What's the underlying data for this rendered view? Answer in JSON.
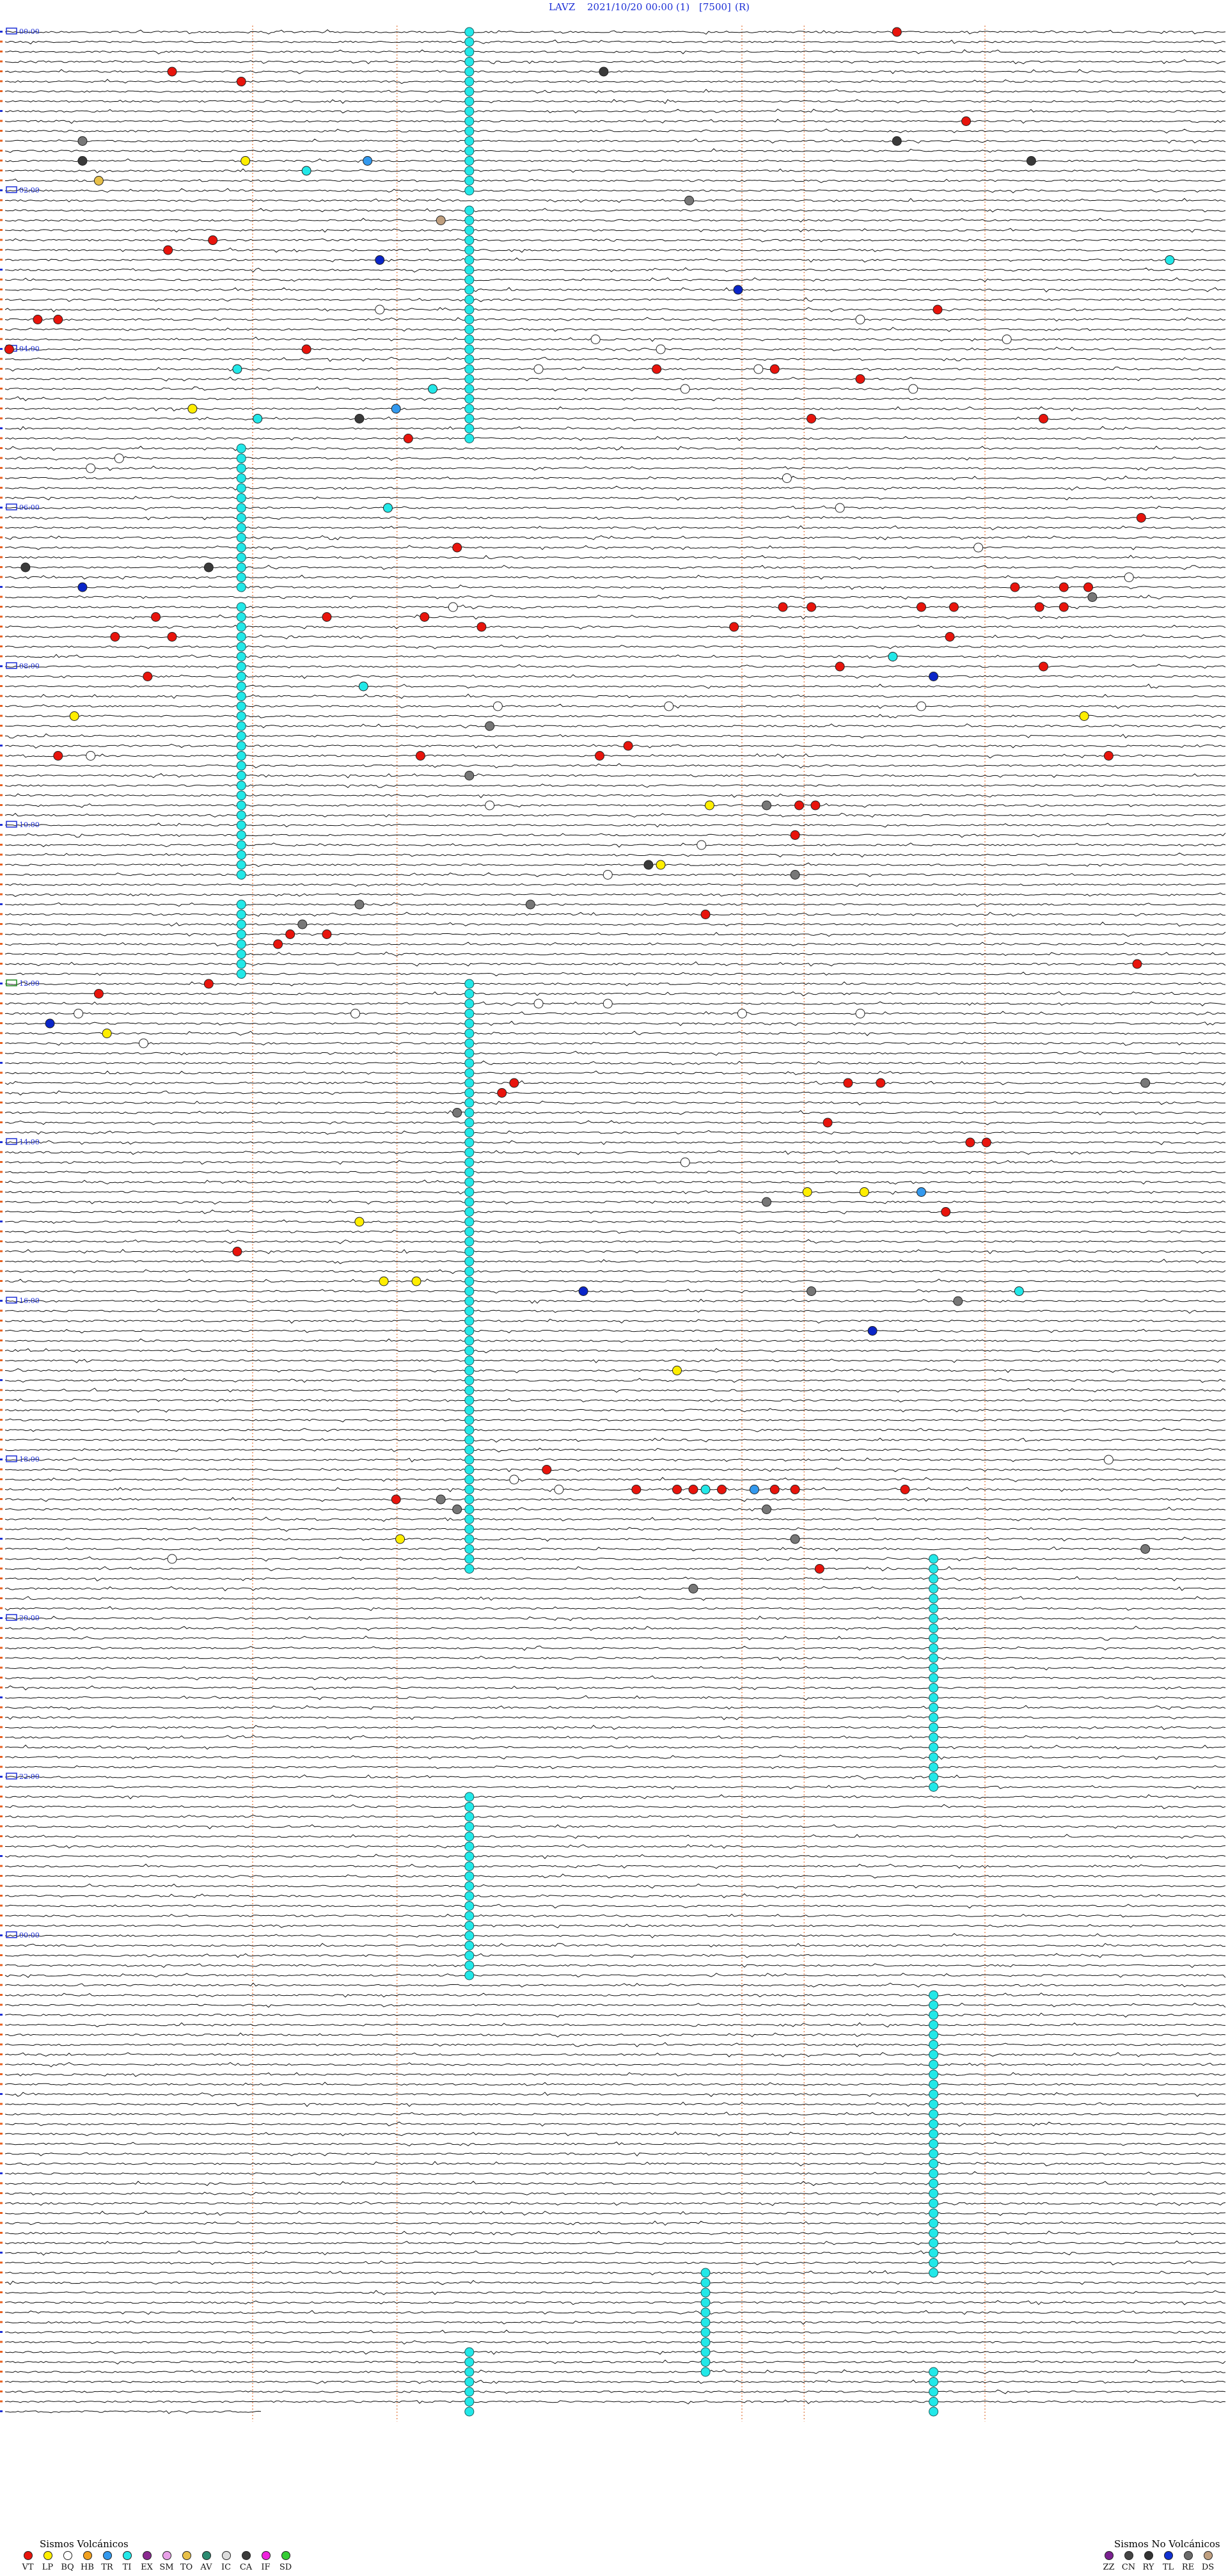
{
  "header": {
    "station": "LAVZ",
    "datetime": "2021/10/20 00:00",
    "channel": "(1)",
    "scale": "[7500]",
    "mode": "(R)"
  },
  "chart_data": {
    "type": "helicorder",
    "start_hour": 0,
    "minutes_per_row": 15,
    "hour_labels": [
      "00:00",
      "02:00",
      "04:00",
      "06:00",
      "08:00",
      "10:00",
      "12:00",
      "14:00",
      "16:00",
      "18:00",
      "20:00",
      "22:00",
      "00:00"
    ],
    "x_range_minutes": [
      0,
      15
    ],
    "event_colors": {
      "VT": "#e8140c",
      "LP": "#ffee00",
      "BQ": "#ffffff",
      "HB": "#f0a020",
      "TR": "#3399ee",
      "TI": "#22e8e8",
      "EX": "#8a2a90",
      "SM": "#e8a0e8",
      "TO": "#e8c048",
      "AV": "#2a8a70",
      "IC": "#dddddd",
      "CA": "#3a3a3a",
      "IF": "#ee22dd",
      "SD": "#33cc33",
      "ZZ": "#7a2090",
      "CN": "#444444",
      "RY": "#333333",
      "TL": "#1030d0",
      "RE": "#6a6a6a",
      "DS": "#c0a080",
      "GR": "#777777",
      "AZ": "#0a25c8",
      "WH": "#ffffff"
    },
    "ti_bands": [
      {
        "x_min": 5.7,
        "row_start": 0,
        "row_end": 16
      },
      {
        "x_min": 5.7,
        "row_start": 18,
        "row_end": 41
      },
      {
        "x_min": 2.9,
        "row_start": 42,
        "row_end": 56
      },
      {
        "x_min": 2.9,
        "row_start": 58,
        "row_end": 85
      },
      {
        "x_min": 2.9,
        "row_start": 88,
        "row_end": 95
      },
      {
        "x_min": 5.7,
        "row_start": 96,
        "row_end": 155
      },
      {
        "x_min": 11.4,
        "row_start": 154,
        "row_end": 177
      },
      {
        "x_min": 5.7,
        "row_start": 178,
        "row_end": 196
      },
      {
        "x_min": 11.4,
        "row_start": 198,
        "row_end": 226
      },
      {
        "x_min": 8.6,
        "row_start": 226,
        "row_end": 236
      },
      {
        "x_min": 5.7,
        "row_start": 234,
        "row_end": 240
      },
      {
        "x_min": 11.4,
        "row_start": 236,
        "row_end": 240
      }
    ],
    "events": [
      {
        "row": 0,
        "x_min": 10.95,
        "type": "VT"
      },
      {
        "row": 4,
        "x_min": 2.05,
        "type": "VT"
      },
      {
        "row": 5,
        "x_min": 2.9,
        "type": "VT"
      },
      {
        "row": 4,
        "x_min": 7.35,
        "type": "CA"
      },
      {
        "row": 9,
        "x_min": 11.8,
        "type": "VT"
      },
      {
        "row": 11,
        "x_min": 0.95,
        "type": "GR"
      },
      {
        "row": 11,
        "x_min": 10.95,
        "type": "CA"
      },
      {
        "row": 13,
        "x_min": 0.95,
        "type": "CA"
      },
      {
        "row": 13,
        "x_min": 2.95,
        "type": "LP"
      },
      {
        "row": 13,
        "x_min": 4.45,
        "type": "TR"
      },
      {
        "row": 13,
        "x_min": 12.6,
        "type": "CA"
      },
      {
        "row": 14,
        "x_min": 3.7,
        "type": "TI"
      },
      {
        "row": 15,
        "x_min": 1.15,
        "type": "TO"
      },
      {
        "row": 17,
        "x_min": 8.4,
        "type": "GR"
      },
      {
        "row": 19,
        "x_min": 5.35,
        "type": "DS"
      },
      {
        "row": 21,
        "x_min": 2.55,
        "type": "VT"
      },
      {
        "row": 22,
        "x_min": 2.0,
        "type": "VT"
      },
      {
        "row": 23,
        "x_min": 4.6,
        "type": "AZ"
      },
      {
        "row": 23,
        "x_min": 14.3,
        "type": "TI"
      },
      {
        "row": 26,
        "x_min": 9.0,
        "type": "AZ"
      },
      {
        "row": 28,
        "x_min": 11.45,
        "type": "VT"
      },
      {
        "row": 28,
        "x_min": 4.6,
        "type": "WH"
      },
      {
        "row": 29,
        "x_min": 0.4,
        "type": "VT"
      },
      {
        "row": 29,
        "x_min": 0.65,
        "type": "VT"
      },
      {
        "row": 29,
        "x_min": 10.5,
        "type": "WH"
      },
      {
        "row": 31,
        "x_min": 7.25,
        "type": "WH"
      },
      {
        "row": 31,
        "x_min": 12.3,
        "type": "WH"
      },
      {
        "row": 32,
        "x_min": 0.05,
        "type": "VT"
      },
      {
        "row": 32,
        "x_min": 3.7,
        "type": "VT"
      },
      {
        "row": 32,
        "x_min": 8.05,
        "type": "WH"
      },
      {
        "row": 34,
        "x_min": 2.85,
        "type": "TI"
      },
      {
        "row": 34,
        "x_min": 6.55,
        "type": "WH"
      },
      {
        "row": 34,
        "x_min": 8.0,
        "type": "VT"
      },
      {
        "row": 34,
        "x_min": 9.25,
        "type": "WH"
      },
      {
        "row": 34,
        "x_min": 9.45,
        "type": "VT"
      },
      {
        "row": 35,
        "x_min": 10.5,
        "type": "VT"
      },
      {
        "row": 36,
        "x_min": 5.25,
        "type": "TI"
      },
      {
        "row": 36,
        "x_min": 8.35,
        "type": "WH"
      },
      {
        "row": 36,
        "x_min": 11.15,
        "type": "WH"
      },
      {
        "row": 38,
        "x_min": 2.3,
        "type": "LP"
      },
      {
        "row": 38,
        "x_min": 4.8,
        "type": "TR"
      },
      {
        "row": 39,
        "x_min": 3.1,
        "type": "TI"
      },
      {
        "row": 39,
        "x_min": 4.35,
        "type": "CA"
      },
      {
        "row": 39,
        "x_min": 9.9,
        "type": "VT"
      },
      {
        "row": 39,
        "x_min": 12.75,
        "type": "VT"
      },
      {
        "row": 41,
        "x_min": 4.95,
        "type": "VT"
      },
      {
        "row": 43,
        "x_min": 1.4,
        "type": "WH"
      },
      {
        "row": 44,
        "x_min": 1.05,
        "type": "WH"
      },
      {
        "row": 45,
        "x_min": 9.6,
        "type": "WH"
      },
      {
        "row": 48,
        "x_min": 4.7,
        "type": "TI"
      },
      {
        "row": 48,
        "x_min": 10.25,
        "type": "WH"
      },
      {
        "row": 49,
        "x_min": 13.95,
        "type": "VT"
      },
      {
        "row": 52,
        "x_min": 5.55,
        "type": "VT"
      },
      {
        "row": 52,
        "x_min": 11.95,
        "type": "WH"
      },
      {
        "row": 54,
        "x_min": 0.25,
        "type": "CA"
      },
      {
        "row": 54,
        "x_min": 2.5,
        "type": "CA"
      },
      {
        "row": 55,
        "x_min": 13.8,
        "type": "WH"
      },
      {
        "row": 56,
        "x_min": 0.95,
        "type": "AZ"
      },
      {
        "row": 56,
        "x_min": 12.4,
        "type": "VT"
      },
      {
        "row": 56,
        "x_min": 13.0,
        "type": "VT"
      },
      {
        "row": 56,
        "x_min": 13.3,
        "type": "VT"
      },
      {
        "row": 57,
        "x_min": 13.35,
        "type": "GR"
      },
      {
        "row": 58,
        "x_min": 5.5,
        "type": "WH"
      },
      {
        "row": 58,
        "x_min": 9.55,
        "type": "VT"
      },
      {
        "row": 58,
        "x_min": 9.9,
        "type": "VT"
      },
      {
        "row": 58,
        "x_min": 11.25,
        "type": "VT"
      },
      {
        "row": 58,
        "x_min": 11.65,
        "type": "VT"
      },
      {
        "row": 58,
        "x_min": 12.7,
        "type": "VT"
      },
      {
        "row": 58,
        "x_min": 13.0,
        "type": "VT"
      },
      {
        "row": 59,
        "x_min": 1.85,
        "type": "VT"
      },
      {
        "row": 59,
        "x_min": 3.95,
        "type": "VT"
      },
      {
        "row": 59,
        "x_min": 5.15,
        "type": "VT"
      },
      {
        "row": 60,
        "x_min": 5.85,
        "type": "VT"
      },
      {
        "row": 60,
        "x_min": 8.95,
        "type": "VT"
      },
      {
        "row": 61,
        "x_min": 1.35,
        "type": "VT"
      },
      {
        "row": 61,
        "x_min": 2.05,
        "type": "VT"
      },
      {
        "row": 61,
        "x_min": 11.6,
        "type": "VT"
      },
      {
        "row": 63,
        "x_min": 10.9,
        "type": "TI"
      },
      {
        "row": 64,
        "x_min": 10.25,
        "type": "VT"
      },
      {
        "row": 64,
        "x_min": 12.75,
        "type": "VT"
      },
      {
        "row": 65,
        "x_min": 1.75,
        "type": "VT"
      },
      {
        "row": 65,
        "x_min": 11.4,
        "type": "AZ"
      },
      {
        "row": 66,
        "x_min": 4.4,
        "type": "TI"
      },
      {
        "row": 68,
        "x_min": 6.05,
        "type": "WH"
      },
      {
        "row": 68,
        "x_min": 8.15,
        "type": "WH"
      },
      {
        "row": 68,
        "x_min": 11.25,
        "type": "WH"
      },
      {
        "row": 69,
        "x_min": 0.85,
        "type": "LP"
      },
      {
        "row": 69,
        "x_min": 13.25,
        "type": "LP"
      },
      {
        "row": 70,
        "x_min": 5.95,
        "type": "GR"
      },
      {
        "row": 72,
        "x_min": 7.65,
        "type": "VT"
      },
      {
        "row": 73,
        "x_min": 0.65,
        "type": "VT"
      },
      {
        "row": 73,
        "x_min": 1.05,
        "type": "WH"
      },
      {
        "row": 73,
        "x_min": 5.1,
        "type": "VT"
      },
      {
        "row": 73,
        "x_min": 7.3,
        "type": "VT"
      },
      {
        "row": 73,
        "x_min": 13.55,
        "type": "VT"
      },
      {
        "row": 75,
        "x_min": 5.7,
        "type": "GR"
      },
      {
        "row": 78,
        "x_min": 5.95,
        "type": "WH"
      },
      {
        "row": 78,
        "x_min": 8.65,
        "type": "LP"
      },
      {
        "row": 78,
        "x_min": 9.35,
        "type": "GR"
      },
      {
        "row": 78,
        "x_min": 9.75,
        "type": "VT"
      },
      {
        "row": 78,
        "x_min": 9.95,
        "type": "VT"
      },
      {
        "row": 81,
        "x_min": 9.7,
        "type": "VT"
      },
      {
        "row": 82,
        "x_min": 8.55,
        "type": "WH"
      },
      {
        "row": 84,
        "x_min": 8.05,
        "type": "LP"
      },
      {
        "row": 84,
        "x_min": 7.9,
        "type": "CA"
      },
      {
        "row": 85,
        "x_min": 7.4,
        "type": "WH"
      },
      {
        "row": 85,
        "x_min": 9.7,
        "type": "GR"
      },
      {
        "row": 88,
        "x_min": 4.35,
        "type": "GR"
      },
      {
        "row": 88,
        "x_min": 6.45,
        "type": "GR"
      },
      {
        "row": 89,
        "x_min": 8.6,
        "type": "VT"
      },
      {
        "row": 90,
        "x_min": 3.65,
        "type": "GR"
      },
      {
        "row": 91,
        "x_min": 3.5,
        "type": "VT"
      },
      {
        "row": 91,
        "x_min": 3.95,
        "type": "VT"
      },
      {
        "row": 92,
        "x_min": 3.35,
        "type": "VT"
      },
      {
        "row": 94,
        "x_min": 13.9,
        "type": "VT"
      },
      {
        "row": 96,
        "x_min": 2.5,
        "type": "VT"
      },
      {
        "row": 97,
        "x_min": 1.15,
        "type": "VT"
      },
      {
        "row": 98,
        "x_min": 6.55,
        "type": "WH"
      },
      {
        "row": 98,
        "x_min": 7.4,
        "type": "WH"
      },
      {
        "row": 99,
        "x_min": 4.3,
        "type": "WH"
      },
      {
        "row": 99,
        "x_min": 10.5,
        "type": "WH"
      },
      {
        "row": 99,
        "x_min": 0.9,
        "type": "WH"
      },
      {
        "row": 99,
        "x_min": 9.05,
        "type": "WH"
      },
      {
        "row": 100,
        "x_min": 0.55,
        "type": "AZ"
      },
      {
        "row": 101,
        "x_min": 1.25,
        "type": "LP"
      },
      {
        "row": 102,
        "x_min": 1.7,
        "type": "WH"
      },
      {
        "row": 106,
        "x_min": 6.25,
        "type": "VT"
      },
      {
        "row": 106,
        "x_min": 10.35,
        "type": "VT"
      },
      {
        "row": 106,
        "x_min": 10.75,
        "type": "VT"
      },
      {
        "row": 106,
        "x_min": 14.0,
        "type": "GR"
      },
      {
        "row": 107,
        "x_min": 6.1,
        "type": "VT"
      },
      {
        "row": 109,
        "x_min": 5.55,
        "type": "GR"
      },
      {
        "row": 110,
        "x_min": 10.1,
        "type": "VT"
      },
      {
        "row": 112,
        "x_min": 11.85,
        "type": "VT"
      },
      {
        "row": 112,
        "x_min": 12.05,
        "type": "VT"
      },
      {
        "row": 114,
        "x_min": 8.35,
        "type": "WH"
      },
      {
        "row": 117,
        "x_min": 9.85,
        "type": "LP"
      },
      {
        "row": 117,
        "x_min": 10.55,
        "type": "LP"
      },
      {
        "row": 117,
        "x_min": 11.25,
        "type": "TR"
      },
      {
        "row": 118,
        "x_min": 9.35,
        "type": "GR"
      },
      {
        "row": 119,
        "x_min": 11.55,
        "type": "VT"
      },
      {
        "row": 120,
        "x_min": 4.35,
        "type": "LP"
      },
      {
        "row": 123,
        "x_min": 2.85,
        "type": "VT"
      },
      {
        "row": 126,
        "x_min": 4.65,
        "type": "LP"
      },
      {
        "row": 126,
        "x_min": 5.05,
        "type": "LP"
      },
      {
        "row": 127,
        "x_min": 7.1,
        "type": "AZ"
      },
      {
        "row": 127,
        "x_min": 9.9,
        "type": "GR"
      },
      {
        "row": 127,
        "x_min": 12.45,
        "type": "TI"
      },
      {
        "row": 128,
        "x_min": 11.7,
        "type": "GR"
      },
      {
        "row": 131,
        "x_min": 10.65,
        "type": "AZ"
      },
      {
        "row": 135,
        "x_min": 8.25,
        "type": "LP"
      },
      {
        "row": 144,
        "x_min": 13.55,
        "type": "WH"
      },
      {
        "row": 145,
        "x_min": 6.65,
        "type": "VT"
      },
      {
        "row": 146,
        "x_min": 6.25,
        "type": "WH"
      },
      {
        "row": 147,
        "x_min": 6.8,
        "type": "WH"
      },
      {
        "row": 147,
        "x_min": 7.75,
        "type": "VT"
      },
      {
        "row": 147,
        "x_min": 8.25,
        "type": "VT"
      },
      {
        "row": 147,
        "x_min": 8.45,
        "type": "VT"
      },
      {
        "row": 147,
        "x_min": 8.6,
        "type": "TI"
      },
      {
        "row": 147,
        "x_min": 8.8,
        "type": "VT"
      },
      {
        "row": 147,
        "x_min": 9.2,
        "type": "TR"
      },
      {
        "row": 147,
        "x_min": 9.45,
        "type": "VT"
      },
      {
        "row": 147,
        "x_min": 9.7,
        "type": "VT"
      },
      {
        "row": 147,
        "x_min": 11.05,
        "type": "VT"
      },
      {
        "row": 148,
        "x_min": 4.8,
        "type": "VT"
      },
      {
        "row": 148,
        "x_min": 5.35,
        "type": "GR"
      },
      {
        "row": 149,
        "x_min": 5.55,
        "type": "GR"
      },
      {
        "row": 149,
        "x_min": 9.35,
        "type": "GR"
      },
      {
        "row": 152,
        "x_min": 4.85,
        "type": "LP"
      },
      {
        "row": 152,
        "x_min": 9.7,
        "type": "GR"
      },
      {
        "row": 153,
        "x_min": 14.0,
        "type": "GR"
      },
      {
        "row": 154,
        "x_min": 2.05,
        "type": "WH"
      },
      {
        "row": 155,
        "x_min": 10.0,
        "type": "VT"
      },
      {
        "row": 157,
        "x_min": 8.45,
        "type": "GR"
      }
    ]
  },
  "legend": {
    "volcanic_title": "Sismos Volcánicos",
    "volcanic": [
      {
        "code": "VT",
        "color": "#e8140c"
      },
      {
        "code": "LP",
        "color": "#ffee00"
      },
      {
        "code": "BQ",
        "color": "#ffffff"
      },
      {
        "code": "HB",
        "color": "#f0a020"
      },
      {
        "code": "TR",
        "color": "#3399ee"
      },
      {
        "code": "TI",
        "color": "#22e8e8"
      },
      {
        "code": "EX",
        "color": "#8a2a90"
      },
      {
        "code": "SM",
        "color": "#e8a0e8"
      },
      {
        "code": "TO",
        "color": "#e8c048"
      },
      {
        "code": "AV",
        "color": "#2a8a70"
      },
      {
        "code": "IC",
        "color": "#dddddd"
      },
      {
        "code": "CA",
        "color": "#3a3a3a"
      },
      {
        "code": "IF",
        "color": "#ee22dd"
      },
      {
        "code": "SD",
        "color": "#33cc33"
      }
    ],
    "nonvolcanic_title": "Sismos No Volcánicos",
    "nonvolcanic": [
      {
        "code": "ZZ",
        "color": "#7a2090"
      },
      {
        "code": "CN",
        "color": "#444444"
      },
      {
        "code": "RY",
        "color": "#333333"
      },
      {
        "code": "TL",
        "color": "#1030d0"
      },
      {
        "code": "RE",
        "color": "#6a6a6a"
      },
      {
        "code": "DS",
        "color": "#c0a080"
      }
    ]
  }
}
